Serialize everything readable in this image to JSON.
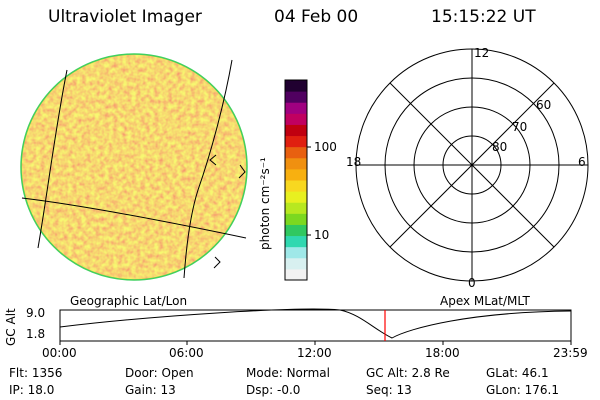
{
  "header": {
    "instrument": "Ultraviolet Imager",
    "date": "04 Feb 00",
    "time": "15:15:22 UT"
  },
  "colorbar": {
    "unit_label": "photon cm⁻²s⁻¹",
    "ticks": [
      {
        "label": "100",
        "value": 100
      },
      {
        "label": "10",
        "value": 10
      }
    ],
    "colors": [
      "#f2f2f2",
      "#d8f0f0",
      "#9fe8e8",
      "#30d8b0",
      "#30c860",
      "#7cd820",
      "#b8e820",
      "#e8f020",
      "#f8d820",
      "#f8b010",
      "#f09010",
      "#e86010",
      "#e02010",
      "#c00010",
      "#c00060",
      "#a00080",
      "#500060",
      "#200030"
    ]
  },
  "map": {
    "disk_colors": {
      "base": "#f0d030",
      "high": "#f0a020",
      "low": "#c8e040",
      "edge": "#40d060"
    }
  },
  "polar": {
    "clock_labels": [
      {
        "label": "12",
        "pos": "top"
      },
      {
        "label": "18",
        "pos": "left"
      },
      {
        "label": "6",
        "pos": "right"
      },
      {
        "label": "0",
        "pos": "bottom"
      }
    ],
    "lat_labels": [
      "60",
      "70",
      "80"
    ]
  },
  "orbit_plot": {
    "left_title": "Geographic Lat/Lon",
    "right_title": "Apex MLat/MLT",
    "ylabel": "GC Alt",
    "yticks": [
      "9.0",
      "1.8"
    ],
    "xticks": [
      "00:00",
      "06:00",
      "12:00",
      "18:00",
      "23:59"
    ],
    "current_time_marker_color": "#ff0000"
  },
  "info": {
    "row1": [
      {
        "label": "Flt:",
        "value": "1356"
      },
      {
        "label": "Door:",
        "value": "Open"
      },
      {
        "label": "Mode:",
        "value": "Normal"
      },
      {
        "label": "GC Alt:",
        "value": "2.8 Re"
      },
      {
        "label": "GLat:",
        "value": "46.1"
      }
    ],
    "row2": [
      {
        "label": "IP:",
        "value": "18.0"
      },
      {
        "label": "Gain:",
        "value": "13"
      },
      {
        "label": "Dsp:",
        "value": "-0.0"
      },
      {
        "label": "Seq:",
        "value": "13"
      },
      {
        "label": "GLon:",
        "value": "176.1"
      }
    ]
  }
}
